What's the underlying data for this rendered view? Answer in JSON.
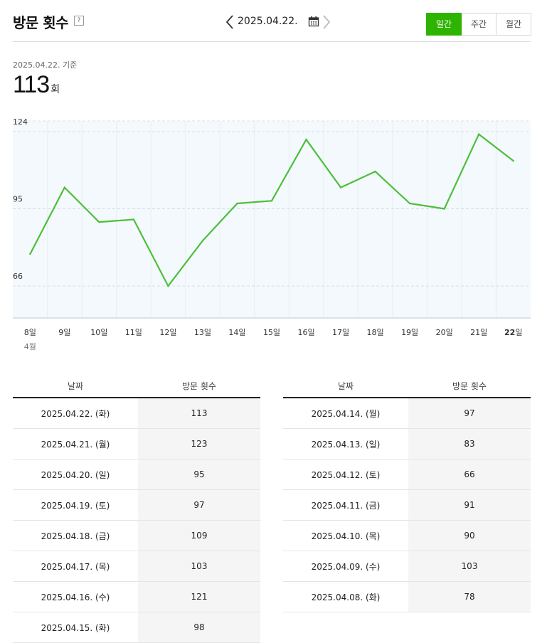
{
  "header": {
    "title": "방문 횟수",
    "help_icon": "?",
    "date": "2025.04.22.",
    "tabs": [
      {
        "label": "일간",
        "active": true
      },
      {
        "label": "주간",
        "active": false
      },
      {
        "label": "월간",
        "active": false
      }
    ]
  },
  "summary": {
    "basis_label": "2025.04.22. 기준",
    "value": "113",
    "unit": "회"
  },
  "colors": {
    "accent": "#2db400",
    "line": "#4cbf3a",
    "plot_bg": "#f4f9fd"
  },
  "chart_data": {
    "type": "line",
    "categories": [
      "8일",
      "9일",
      "10일",
      "11일",
      "12일",
      "13일",
      "14일",
      "15일",
      "16일",
      "17일",
      "18일",
      "19일",
      "20일",
      "21일",
      "22일"
    ],
    "month_label": "4월",
    "values": [
      78,
      103,
      90,
      91,
      66,
      83,
      97,
      98,
      121,
      103,
      109,
      97,
      95,
      123,
      113
    ],
    "yticks": [
      66,
      95,
      124
    ],
    "ylim": [
      54,
      128
    ],
    "grid": true
  },
  "tables": {
    "col_date": "날짜",
    "col_count": "방문 횟수",
    "left": [
      {
        "date": "2025.04.22. (화)",
        "count": "113"
      },
      {
        "date": "2025.04.21. (월)",
        "count": "123"
      },
      {
        "date": "2025.04.20. (일)",
        "count": "95"
      },
      {
        "date": "2025.04.19. (토)",
        "count": "97"
      },
      {
        "date": "2025.04.18. (금)",
        "count": "109"
      },
      {
        "date": "2025.04.17. (목)",
        "count": "103"
      },
      {
        "date": "2025.04.16. (수)",
        "count": "121"
      },
      {
        "date": "2025.04.15. (화)",
        "count": "98"
      }
    ],
    "right": [
      {
        "date": "2025.04.14. (월)",
        "count": "97"
      },
      {
        "date": "2025.04.13. (일)",
        "count": "83"
      },
      {
        "date": "2025.04.12. (토)",
        "count": "66"
      },
      {
        "date": "2025.04.11. (금)",
        "count": "91"
      },
      {
        "date": "2025.04.10. (목)",
        "count": "90"
      },
      {
        "date": "2025.04.09. (수)",
        "count": "103"
      },
      {
        "date": "2025.04.08. (화)",
        "count": "78"
      }
    ]
  }
}
